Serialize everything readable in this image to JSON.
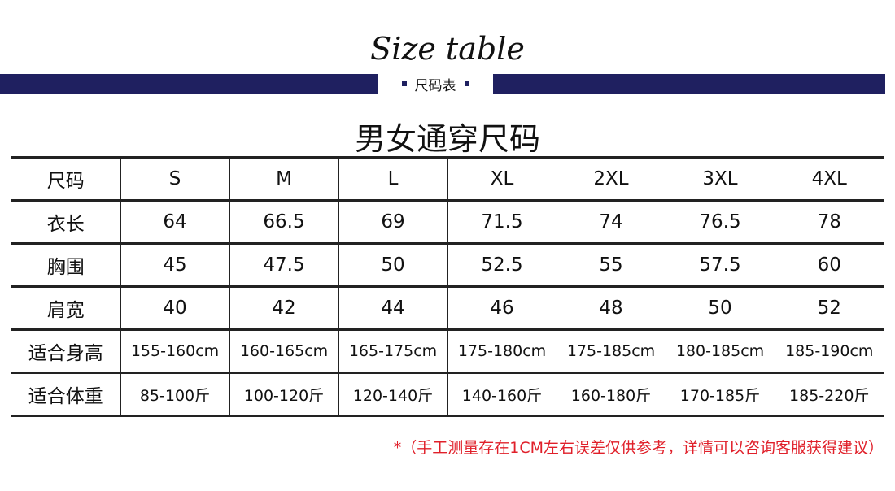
{
  "title": "Size table",
  "subtitle": "尺码表",
  "heading": "男女通穿尺码",
  "table": {
    "header": [
      "尺码",
      "S",
      "M",
      "L",
      "XL",
      "2XL",
      "3XL",
      "4XL"
    ],
    "rows": [
      [
        "衣长",
        "64",
        "66.5",
        "69",
        "71.5",
        "74",
        "76.5",
        "78"
      ],
      [
        "胸围",
        "45",
        "47.5",
        "50",
        "52.5",
        "55",
        "57.5",
        "60"
      ],
      [
        "肩宽",
        "40",
        "42",
        "44",
        "46",
        "48",
        "50",
        "52"
      ],
      [
        "适合身高",
        "155-160cm",
        "160-165cm",
        "165-175cm",
        "175-180cm",
        "175-185cm",
        "180-185cm",
        "185-190cm"
      ],
      [
        "适合体重",
        "85-100斤",
        "100-120斤",
        "120-140斤",
        "140-160斤",
        "160-180斤",
        "170-185斤",
        "185-220斤"
      ]
    ]
  },
  "note": "*（手工测量存在1CM左右误差仅供参考，详情可以咨询客服获得建议）",
  "colors": {
    "band": "#1f2060",
    "note": "#e0202a"
  }
}
